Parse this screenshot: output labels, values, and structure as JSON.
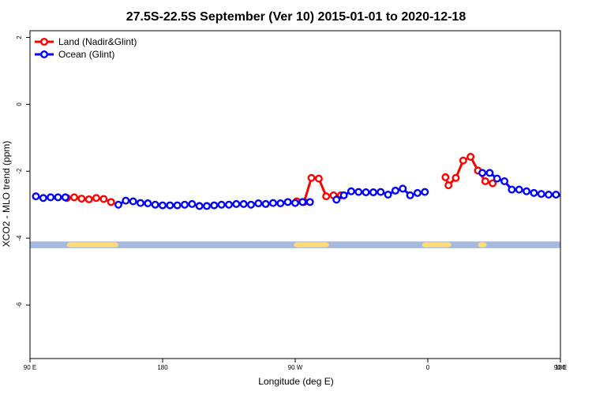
{
  "chart_data": {
    "type": "line",
    "title": "27.5S-22.5S September (Ver 10)   2015-01-01 to 2020-12-18",
    "xlabel": "Longitude (deg E)",
    "ylabel": "XCO2 - MLO trend (ppm)",
    "xlim": [
      90,
      450
    ],
    "ylim": [
      -7.6,
      2.2
    ],
    "x_ticks": [
      90,
      180,
      270,
      360,
      450
    ],
    "x_tick_labels": [
      "90 E",
      "180",
      "90 W",
      "0",
      "90 E",
      "180"
    ],
    "x_tick_values": [
      90,
      180,
      270,
      360,
      450,
      540
    ],
    "y_ticks": [
      2,
      0,
      -2,
      -4,
      -6
    ],
    "y_tick_labels": [
      "2",
      "0",
      "-2",
      "-4",
      "-6"
    ],
    "legend": "top-left",
    "series": [
      {
        "name": "Land (Nadir&Glint)",
        "color": "#ff0000",
        "segments": [
          {
            "x": [
              115,
              120,
              125,
              130,
              135,
              140,
              145
            ],
            "y": [
              -2.8,
              -2.78,
              -2.82,
              -2.84,
              -2.8,
              -2.83,
              -2.92
            ]
          },
          {
            "x": [
              271,
              276,
              281,
              286,
              291,
              296,
              301
            ],
            "y": [
              -2.9,
              -2.92,
              -2.2,
              -2.22,
              -2.75,
              -2.72,
              -2.72
            ]
          },
          {
            "x": [
              372,
              374,
              379,
              384,
              389,
              394,
              399,
              404
            ],
            "y": [
              -2.18,
              -2.42,
              -2.2,
              -1.68,
              -1.57,
              -1.98,
              -2.3,
              -2.36
            ]
          },
          {
            "x": [
              545,
              550,
              555,
              560,
              565,
              570,
              575,
              580,
              585
            ],
            "y": [
              -2.8,
              -2.8,
              -2.82,
              -2.85,
              -2.8,
              -2.85,
              -2.92,
              -2.95,
              -2.95
            ]
          }
        ]
      },
      {
        "name": "Ocean (Glint)",
        "color": "#0000ff",
        "segments": [
          {
            "x": [
              94,
              99,
              104,
              109,
              114
            ],
            "y": [
              -2.75,
              -2.8,
              -2.78,
              -2.78,
              -2.78
            ]
          },
          {
            "x": [
              150,
              155,
              160,
              165,
              170,
              175,
              180,
              185,
              190,
              195,
              200,
              205,
              210,
              215,
              220,
              225,
              230,
              235,
              240,
              245,
              250,
              255,
              260,
              265,
              270,
              275,
              280
            ],
            "y": [
              -3,
              -2.88,
              -2.9,
              -2.95,
              -2.96,
              -3,
              -3.02,
              -3.02,
              -3.02,
              -3,
              -2.98,
              -3.04,
              -3.04,
              -3.02,
              -3,
              -3,
              -2.98,
              -2.98,
              -3,
              -2.96,
              -2.98,
              -2.95,
              -2.96,
              -2.92,
              -2.95,
              -2.92,
              -2.92
            ]
          },
          {
            "x": [
              298,
              303,
              308,
              313,
              318,
              323,
              328,
              333,
              338,
              343,
              348,
              353,
              358
            ],
            "y": [
              -2.85,
              -2.72,
              -2.6,
              -2.62,
              -2.63,
              -2.63,
              -2.62,
              -2.7,
              -2.58,
              -2.52,
              -2.72,
              -2.65,
              -2.62
            ]
          },
          {
            "x": [
              397,
              402,
              407,
              412,
              417,
              422,
              427,
              432,
              437,
              442,
              447,
              452,
              457,
              462,
              467,
              472,
              477,
              482,
              487,
              492,
              497,
              502,
              507,
              512,
              517,
              522,
              527,
              532,
              537,
              542
            ],
            "y": [
              -2.05,
              -2.05,
              -2.22,
              -2.3,
              -2.55,
              -2.55,
              -2.6,
              -2.65,
              -2.68,
              -2.7,
              -2.7,
              -2.72,
              -2.72,
              -2.75,
              -2.75,
              -2.75,
              -2.75,
              -2.75,
              -2.75,
              -2.78,
              -2.78,
              -2.78,
              -2.78,
              -2.78,
              -2.8,
              -2.8,
              -2.8,
              -2.8,
              -2.8,
              -2.8
            ]
          },
          {
            "x": [
              590,
              595,
              600,
              605,
              610,
              615
            ],
            "y": [
              -3,
              -2.88,
              -2.88,
              -2.92,
              -2.95,
              -2.98
            ]
          }
        ]
      }
    ],
    "land_ocean_strip": {
      "y_range": [
        -4.1,
        -4.3
      ],
      "ocean_color": "#a5b8dd",
      "land_color": "#fddb7a",
      "land_x": [
        [
          115,
          150
        ],
        [
          269,
          293
        ],
        [
          356,
          376
        ],
        [
          394,
          400
        ],
        [
          540,
          580
        ]
      ]
    }
  }
}
